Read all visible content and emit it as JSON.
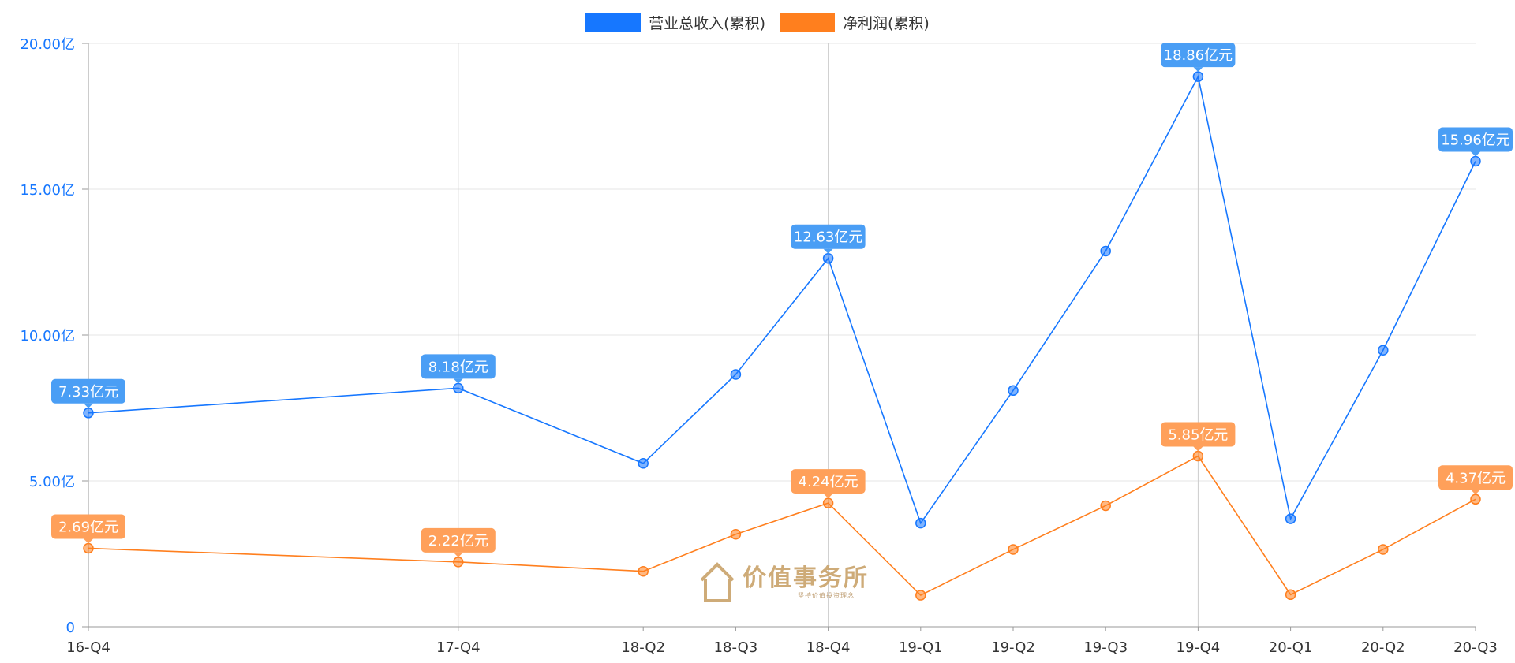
{
  "legend": [
    {
      "name": "营业总收入(累积)",
      "color": "#1677ff"
    },
    {
      "name": "净利润(累积)",
      "color": "#ff7f1e"
    }
  ],
  "watermark": {
    "title": "价值事务所",
    "sub": "坚持价值投资理念"
  },
  "chart_data": {
    "type": "line",
    "categories": [
      "16-Q4",
      "17-Q4",
      "18-Q2",
      "18-Q3",
      "18-Q4",
      "19-Q1",
      "19-Q2",
      "19-Q3",
      "19-Q4",
      "20-Q1",
      "20-Q2",
      "20-Q3"
    ],
    "x_positions": [
      0,
      1,
      1.5,
      1.75,
      2,
      2.25,
      2.5,
      2.75,
      3,
      3.25,
      3.5,
      3.75
    ],
    "ylim": [
      0,
      20
    ],
    "yticks": [
      0,
      5,
      10,
      15,
      20
    ],
    "ytick_labels": [
      "0",
      "5.00亿",
      "10.00亿",
      "15.00亿",
      "20.00亿"
    ],
    "grid": true,
    "legend_position": "top-center",
    "series": [
      {
        "name": "营业总收入(累积)",
        "color": "#1677ff",
        "label_color": "#4a9ef5",
        "values": [
          7.33,
          8.18,
          5.6,
          8.65,
          12.63,
          3.55,
          8.1,
          12.88,
          18.86,
          3.7,
          9.48,
          15.96
        ],
        "labels": [
          "7.33亿元",
          "8.18亿元",
          null,
          null,
          "12.63亿元",
          null,
          null,
          null,
          "18.86亿元",
          null,
          null,
          "15.96亿元"
        ]
      },
      {
        "name": "净利润(累积)",
        "color": "#ff7f1e",
        "label_color": "#ffa05a",
        "values": [
          2.69,
          2.22,
          1.9,
          3.17,
          4.24,
          1.08,
          2.65,
          4.15,
          5.85,
          1.1,
          2.65,
          4.37
        ],
        "labels": [
          "2.69亿元",
          "2.22亿元",
          null,
          null,
          "4.24亿元",
          null,
          null,
          null,
          "5.85亿元",
          null,
          null,
          "4.37亿元"
        ]
      }
    ]
  }
}
